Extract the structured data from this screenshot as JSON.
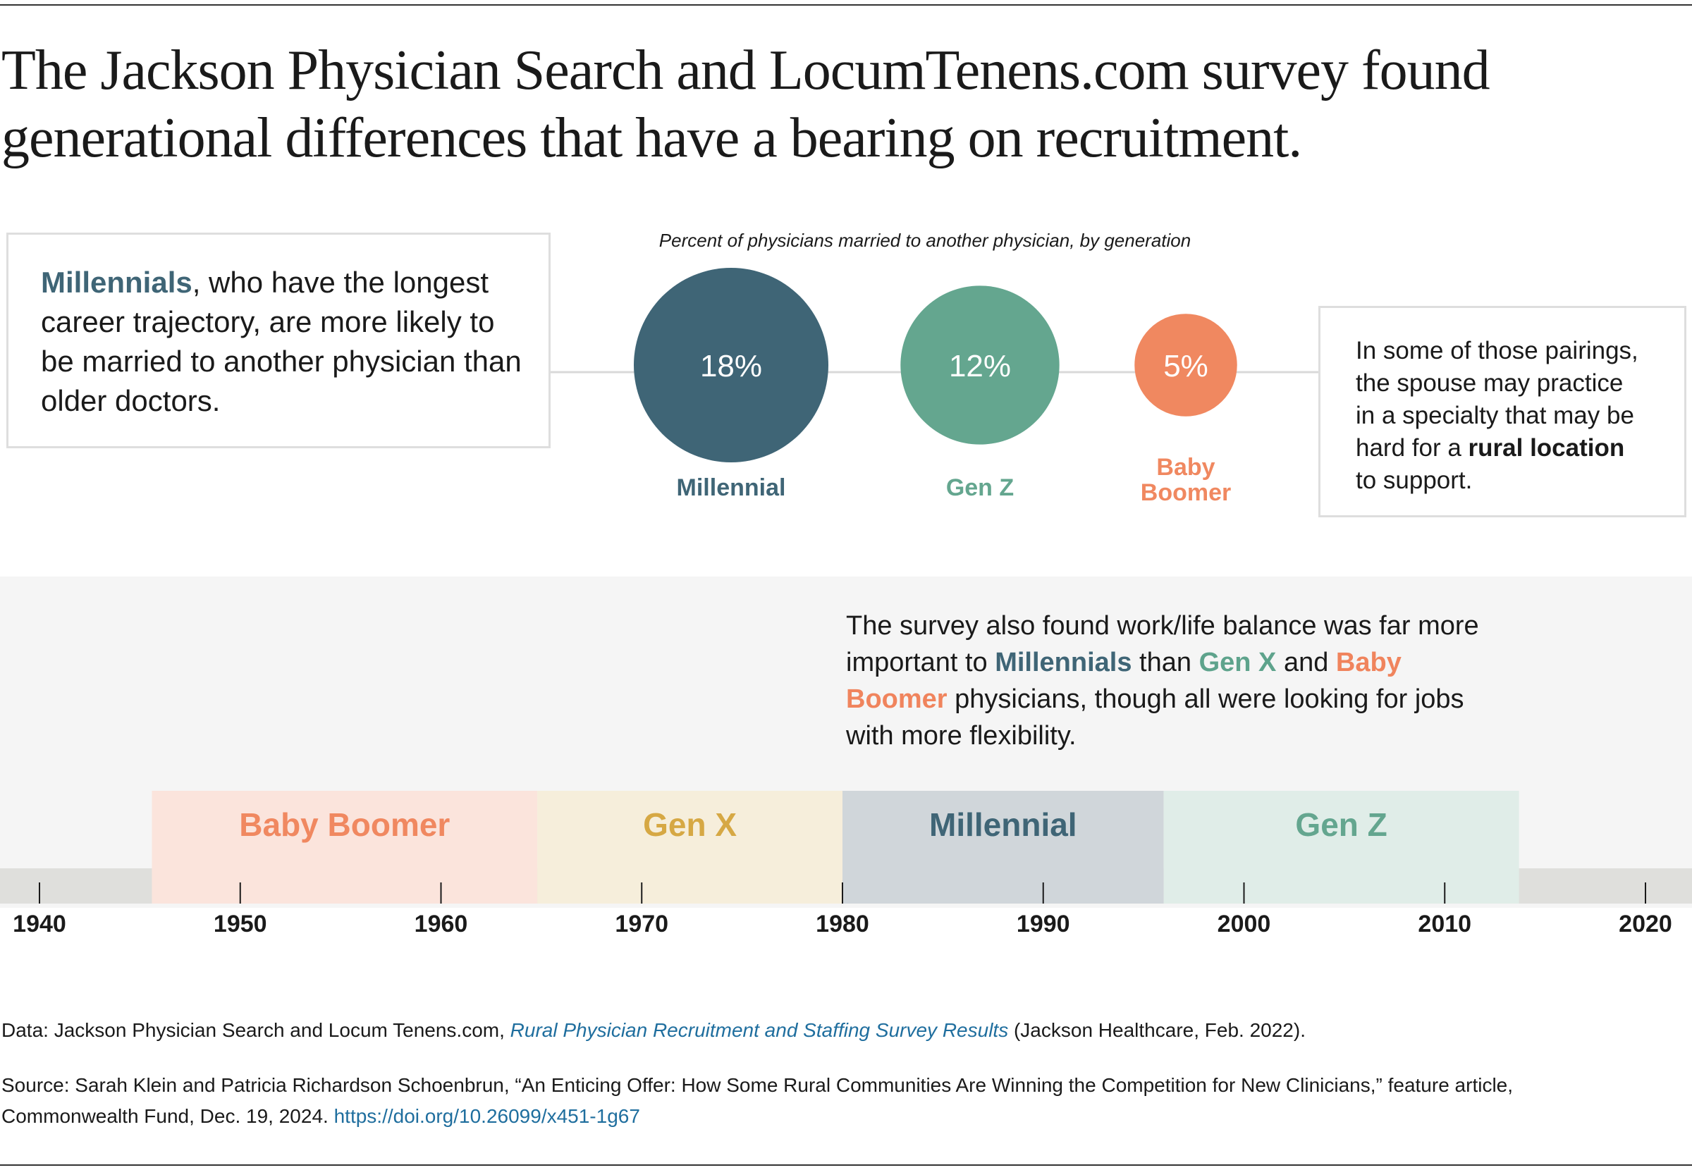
{
  "headline": {
    "line1": "The Jackson Physician Search and LocumTenens.com survey found",
    "line2": "generational differences that have a bearing on recruitment."
  },
  "left_callout": {
    "highlight": "Millennials",
    "text": ", who have the longest career trajectory, are more likely to be married to another physician than older doctors."
  },
  "right_callout": {
    "line1": "In some of those pairings,",
    "line2": "the spouse may practice",
    "line3": "in a specialty that may be",
    "line4_pre": "hard for a ",
    "line4_bold": "rural location",
    "line5": "to support."
  },
  "balance_note": {
    "p1": "The survey also found work/life balance was far more important to ",
    "mil": "Millennials",
    "p2": " than ",
    "genx": "Gen X",
    "p3": " and ",
    "boom": "Baby Boomer",
    "p4": " physicians, though all were looking for jobs with more flexibility."
  },
  "colors": {
    "millennial": "#3f6576",
    "gen_z": "#64a68f",
    "gen_x": "#d6a844",
    "baby_boomer": "#f08860",
    "millennial_band": "#d0d6da",
    "gen_z_band": "#e0ede8",
    "gen_x_band": "#f6eedb",
    "baby_boomer_band": "#fbe4dc",
    "axis_band": "#dfdfdc"
  },
  "chart_data": [
    {
      "type": "bubble",
      "title": "Percent of physicians married to another physician, by generation",
      "categories": [
        "Millennial",
        "Gen Z",
        "Baby Boomer"
      ],
      "values": [
        18,
        12,
        5
      ],
      "value_labels": [
        "18%",
        "12%",
        "5%"
      ],
      "unit": "%"
    },
    {
      "type": "timeline",
      "xlim": [
        1940,
        2020
      ],
      "ticks": [
        1940,
        1950,
        1960,
        1970,
        1980,
        1990,
        2000,
        2010,
        2020
      ],
      "ranges": [
        {
          "name": "Baby Boomer",
          "start": 1945.6,
          "end": 1964.8
        },
        {
          "name": "Gen X",
          "start": 1964.8,
          "end": 1980
        },
        {
          "name": "Millennial",
          "start": 1980,
          "end": 1996
        },
        {
          "name": "Gen Z",
          "start": 1996,
          "end": 2013.7
        }
      ]
    }
  ],
  "footer": {
    "data_prefix": "Data: Jackson Physician Search and Locum Tenens.com, ",
    "data_link": "Rural Physician Recruitment and Staffing Survey Results",
    "data_suffix": " (Jackson Healthcare, Feb. 2022).",
    "source_line1": "Source: Sarah Klein and Patricia Richardson Schoenbrun, “An Enticing Offer: How Some Rural Communities Are Winning the Competition for New Clinicians,” feature article,",
    "source_line2": "Commonwealth Fund, Dec. 19, 2024. ",
    "source_link": "https://doi.org/10.26099/x451-1g67"
  }
}
